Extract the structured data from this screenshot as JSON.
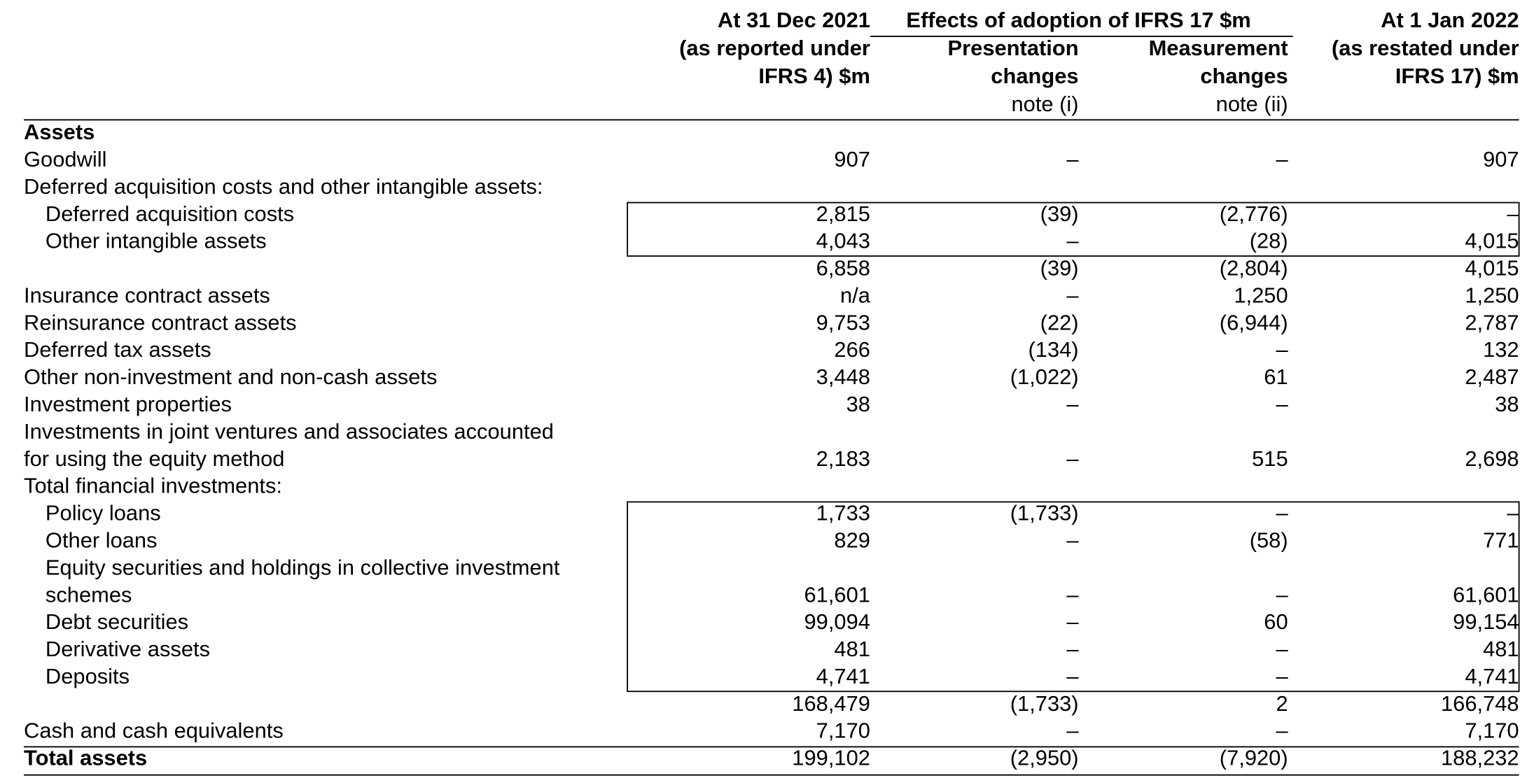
{
  "header": {
    "col1": [
      "At 31 Dec 2021",
      "(as reported under",
      "IFRS 4) $m"
    ],
    "group": "Effects of adoption of IFRS 17 $m",
    "col2": [
      "Presentation",
      "changes",
      "note (i)"
    ],
    "col3": [
      "Measurement",
      "changes",
      "note (ii)"
    ],
    "col4": [
      "At 1 Jan 2022",
      "(as restated under",
      "IFRS 17) $m"
    ]
  },
  "rows": [
    {
      "label": [
        "Assets"
      ],
      "bold": true
    },
    {
      "label": [
        "Goodwill"
      ],
      "values": [
        "907",
        "–",
        "–",
        "907"
      ]
    },
    {
      "label": [
        "Deferred acquisition costs and other intangible assets:"
      ]
    },
    {
      "label": [
        "Deferred acquisition costs"
      ],
      "indent": true,
      "boxed": true,
      "values": [
        "2,815",
        "(39)",
        "(2,776)",
        "–"
      ]
    },
    {
      "label": [
        "Other intangible assets"
      ],
      "indent": true,
      "boxed": true,
      "values": [
        "4,043",
        "–",
        "(28)",
        "4,015"
      ]
    },
    {
      "label": [],
      "values": [
        "6,858",
        "(39)",
        "(2,804)",
        "4,015"
      ]
    },
    {
      "label": [
        "Insurance contract assets"
      ],
      "values": [
        "n/a",
        "–",
        "1,250",
        "1,250"
      ]
    },
    {
      "label": [
        "Reinsurance contract assets"
      ],
      "values": [
        "9,753",
        "(22)",
        "(6,944)",
        "2,787"
      ]
    },
    {
      "label": [
        "Deferred tax assets"
      ],
      "values": [
        "266",
        "(134)",
        "–",
        "132"
      ]
    },
    {
      "label": [
        "Other non-investment and non-cash assets"
      ],
      "values": [
        "3,448",
        "(1,022)",
        "61",
        "2,487"
      ]
    },
    {
      "label": [
        "Investment properties"
      ],
      "values": [
        "38",
        "–",
        "–",
        "38"
      ]
    },
    {
      "label": [
        "Investments in joint ventures and associates accounted",
        "for using the equity method"
      ],
      "values": [
        "2,183",
        "–",
        "515",
        "2,698"
      ]
    },
    {
      "label": [
        "Total financial investments:"
      ]
    },
    {
      "label": [
        "Policy loans"
      ],
      "indent": true,
      "boxed": true,
      "values": [
        "1,733",
        "(1,733)",
        "–",
        "–"
      ]
    },
    {
      "label": [
        "Other loans"
      ],
      "indent": true,
      "boxed": true,
      "values": [
        "829",
        "–",
        "(58)",
        "771"
      ]
    },
    {
      "label": [
        "Equity securities and holdings in collective investment",
        "schemes"
      ],
      "indent": true,
      "boxed": true,
      "values": [
        "61,601",
        "–",
        "–",
        "61,601"
      ]
    },
    {
      "label": [
        "Debt securities"
      ],
      "indent": true,
      "boxed": true,
      "values": [
        "99,094",
        "–",
        "60",
        "99,154"
      ]
    },
    {
      "label": [
        "Derivative assets"
      ],
      "indent": true,
      "boxed": true,
      "values": [
        "481",
        "–",
        "–",
        "481"
      ]
    },
    {
      "label": [
        "Deposits"
      ],
      "indent": true,
      "boxed": true,
      "values": [
        "4,741",
        "–",
        "–",
        "4,741"
      ]
    },
    {
      "label": [],
      "values": [
        "168,479",
        "(1,733)",
        "2",
        "166,748"
      ]
    },
    {
      "label": [
        "Cash and cash equivalents"
      ],
      "values": [
        "7,170",
        "–",
        "–",
        "7,170"
      ]
    },
    {
      "label": [
        "Total assets"
      ],
      "bold": true,
      "total": true,
      "values": [
        "199,102",
        "(2,950)",
        "(7,920)",
        "188,232"
      ]
    }
  ]
}
